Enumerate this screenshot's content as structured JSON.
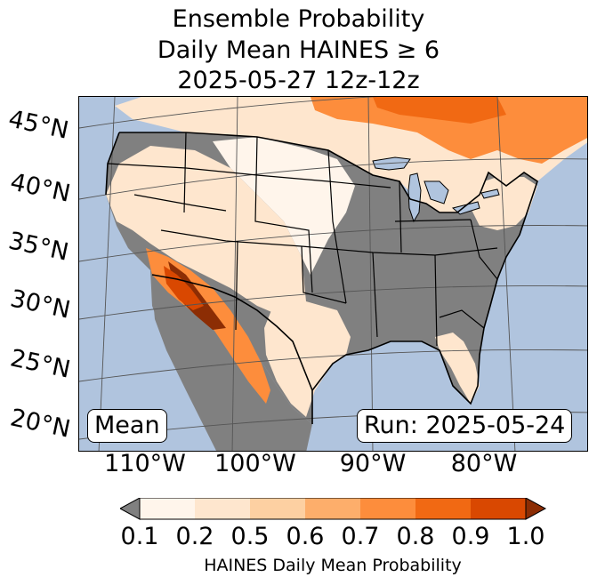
{
  "title": {
    "line1": "Ensemble Probability",
    "line2": "Daily Mean HAINES ≥ 6",
    "line3": "2025-05-27 12z-12z"
  },
  "map": {
    "lat_labels": [
      "45°N",
      "40°N",
      "35°N",
      "30°N",
      "25°N",
      "20°N"
    ],
    "lon_labels": [
      "110°W",
      "100°W",
      "90°W",
      "80°W"
    ],
    "box_left": "Mean",
    "box_right": "Run: 2025-05-24",
    "colors": {
      "ocean": "#b0c4de",
      "land_below": "#808080",
      "borders": "#000000",
      "gridlines": "#555555"
    }
  },
  "colorbar": {
    "ticks": [
      "0.1",
      "0.2",
      "0.5",
      "0.6",
      "0.7",
      "0.8",
      "0.9",
      "1.0"
    ],
    "label": "HAINES Daily Mean Probability",
    "colors": [
      "#fff5eb",
      "#fee6ce",
      "#fdd0a2",
      "#fdae6b",
      "#fd8d3c",
      "#f16913",
      "#d94801",
      "#8c2d04"
    ],
    "under_color": "#808080"
  }
}
